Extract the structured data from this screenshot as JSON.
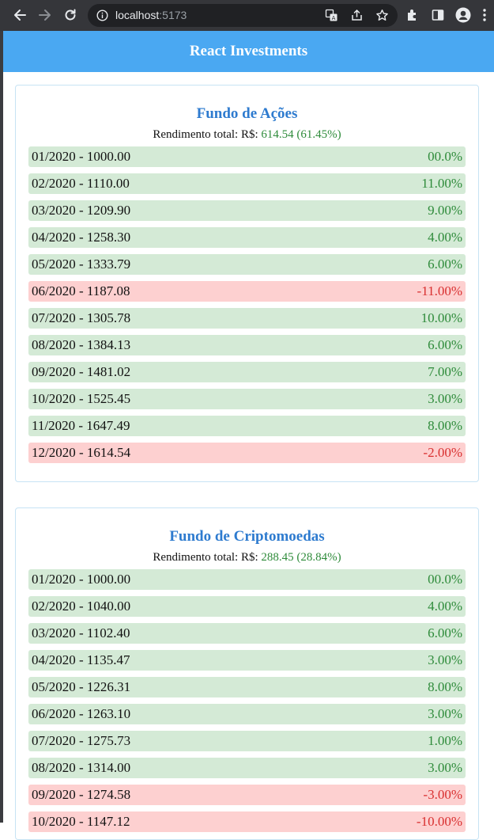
{
  "browser": {
    "host": "localhost",
    "port": ":5173"
  },
  "app": {
    "title": "React Investments"
  },
  "funds": [
    {
      "title": "Fundo de Ações",
      "yield_label": "Rendimento total: R$:",
      "yield_value": "614.54 (61.45%)",
      "rows": [
        {
          "label": "01/2020 - 1000.00",
          "pct": "00.0%",
          "status": "pos"
        },
        {
          "label": "02/2020 - 1110.00",
          "pct": "11.00%",
          "status": "pos"
        },
        {
          "label": "03/2020 - 1209.90",
          "pct": "9.00%",
          "status": "pos"
        },
        {
          "label": "04/2020 - 1258.30",
          "pct": "4.00%",
          "status": "pos"
        },
        {
          "label": "05/2020 - 1333.79",
          "pct": "6.00%",
          "status": "pos"
        },
        {
          "label": "06/2020 - 1187.08",
          "pct": "-11.00%",
          "status": "neg"
        },
        {
          "label": "07/2020 - 1305.78",
          "pct": "10.00%",
          "status": "pos"
        },
        {
          "label": "08/2020 - 1384.13",
          "pct": "6.00%",
          "status": "pos"
        },
        {
          "label": "09/2020 - 1481.02",
          "pct": "7.00%",
          "status": "pos"
        },
        {
          "label": "10/2020 - 1525.45",
          "pct": "3.00%",
          "status": "pos"
        },
        {
          "label": "11/2020 - 1647.49",
          "pct": "8.00%",
          "status": "pos"
        },
        {
          "label": "12/2020 - 1614.54",
          "pct": "-2.00%",
          "status": "neg"
        }
      ]
    },
    {
      "title": "Fundo de Criptomoedas",
      "yield_label": "Rendimento total: R$:",
      "yield_value": "288.45 (28.84%)",
      "rows": [
        {
          "label": "01/2020 - 1000.00",
          "pct": "00.0%",
          "status": "pos"
        },
        {
          "label": "02/2020 - 1040.00",
          "pct": "4.00%",
          "status": "pos"
        },
        {
          "label": "03/2020 - 1102.40",
          "pct": "6.00%",
          "status": "pos"
        },
        {
          "label": "04/2020 - 1135.47",
          "pct": "3.00%",
          "status": "pos"
        },
        {
          "label": "05/2020 - 1226.31",
          "pct": "8.00%",
          "status": "pos"
        },
        {
          "label": "06/2020 - 1263.10",
          "pct": "3.00%",
          "status": "pos"
        },
        {
          "label": "07/2020 - 1275.73",
          "pct": "1.00%",
          "status": "pos"
        },
        {
          "label": "08/2020 - 1314.00",
          "pct": "3.00%",
          "status": "pos"
        },
        {
          "label": "09/2020 - 1274.58",
          "pct": "-3.00%",
          "status": "neg"
        },
        {
          "label": "10/2020 - 1147.12",
          "pct": "-10.00%",
          "status": "neg"
        }
      ]
    }
  ],
  "colors": {
    "header_bg": "#4aa8f2",
    "title_blue": "#2e7bcf",
    "positive_bg": "#d4ead6",
    "negative_bg": "#fdd0d0",
    "positive_text": "#2e8b3a",
    "negative_text": "#d93030"
  }
}
